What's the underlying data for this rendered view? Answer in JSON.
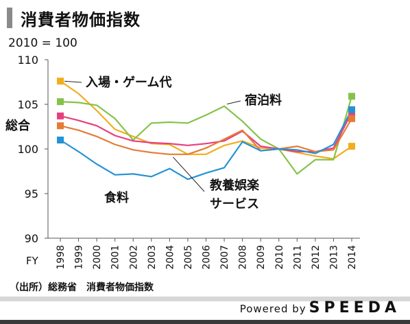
{
  "title": "消費者物価指数",
  "unit_note": "2010 = 100",
  "source_note": "（出所）総務省　消費者物価指数",
  "powered": {
    "prefix": "Powered by",
    "brand": "SPEEDA"
  },
  "chart_data": {
    "type": "line",
    "x_prefix": "FY",
    "x": [
      "1998",
      "1999",
      "2000",
      "2001",
      "2002",
      "2003",
      "2004",
      "2005",
      "2006",
      "2007",
      "2008",
      "2009",
      "2010",
      "2011",
      "2012",
      "2013",
      "2014"
    ],
    "ylim": [
      90,
      110
    ],
    "yticks": [
      90,
      95,
      100,
      105,
      110
    ],
    "grid": false,
    "series": [
      {
        "name": "入場・ゲーム代",
        "color": "#f2ad1d",
        "values": [
          107.6,
          106.2,
          104.3,
          102.2,
          101.4,
          100.6,
          100.5,
          99.4,
          99.4,
          100.4,
          100.9,
          100.1,
          100.0,
          99.6,
          99.2,
          98.9,
          100.3
        ]
      },
      {
        "name": "宿泊料",
        "color": "#86c24a",
        "values": [
          105.3,
          105.2,
          104.9,
          103.4,
          101.0,
          102.9,
          103.0,
          102.9,
          103.8,
          104.8,
          103.1,
          101.1,
          100.0,
          97.2,
          98.8,
          98.8,
          105.9
        ]
      },
      {
        "name": "総合",
        "color": "#e73f7e",
        "values": [
          103.7,
          103.2,
          102.6,
          101.5,
          100.9,
          100.7,
          100.6,
          100.4,
          100.6,
          100.9,
          102.0,
          100.3,
          100.0,
          99.7,
          99.7,
          100.1,
          104.1
        ]
      },
      {
        "name": "教養娯楽サービス",
        "color": "#e57c35",
        "values": [
          102.6,
          102.1,
          101.4,
          100.5,
          99.9,
          99.6,
          99.4,
          99.4,
          100.1,
          101.1,
          102.1,
          99.8,
          100.0,
          100.3,
          99.7,
          99.9,
          103.4
        ]
      },
      {
        "name": "食料",
        "color": "#2492d6",
        "values": [
          101.0,
          99.7,
          98.3,
          97.1,
          97.2,
          96.9,
          97.8,
          96.6,
          97.3,
          97.9,
          100.8,
          99.8,
          100.0,
          99.9,
          99.5,
          100.5,
          104.4
        ]
      }
    ]
  }
}
